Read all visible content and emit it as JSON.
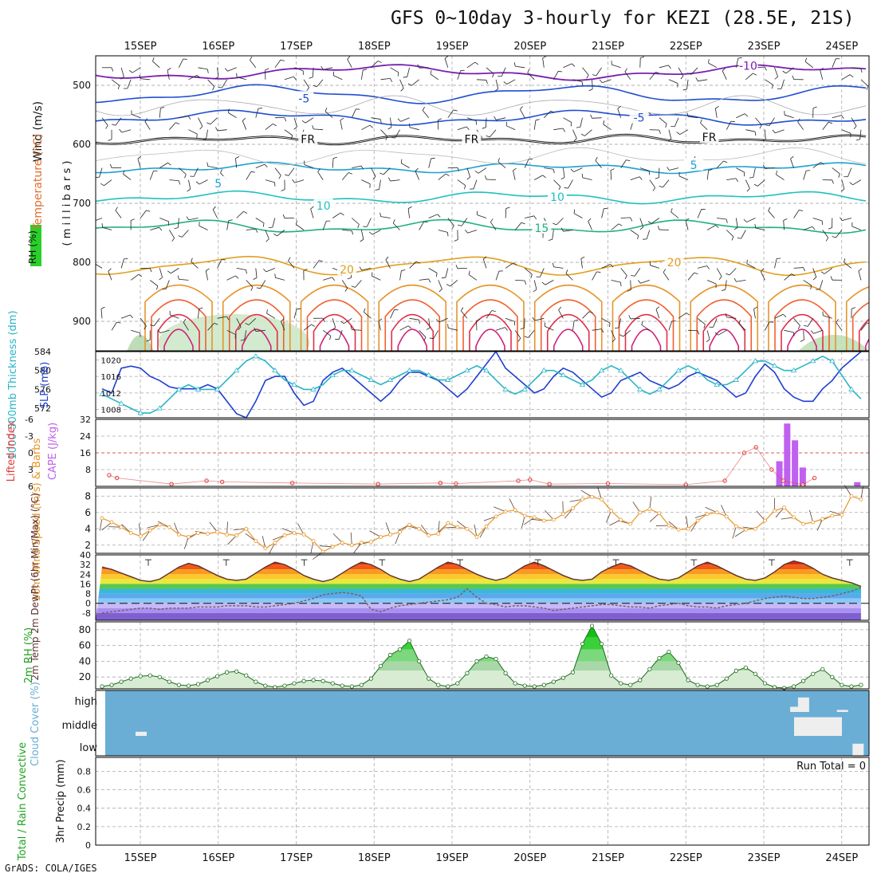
{
  "title": "GFS 0~10day 3-hourly for KEZI (28.5E, 21S)",
  "footer": "GrADS: COLA/IGES",
  "date_labels": [
    "15SEP",
    "16SEP",
    "17SEP",
    "18SEP",
    "19SEP",
    "20SEP",
    "21SEP",
    "22SEP",
    "23SEP",
    "24SEP"
  ],
  "colors": {
    "rh_green": "#1fd01f",
    "temp": "#e05050",
    "wind": "#7030a0",
    "cloud_blue": "#6aaed6",
    "slp": "#1f3fcf",
    "thick": "#2ab5c6",
    "li": "#e03a3a",
    "cape": "#c060f0",
    "wind10": "#e7962a",
    "rh2m": "#1fa21f"
  },
  "chart_data": [
    {
      "type": "contour",
      "panel": "upper-air",
      "ylabel_parts": [
        "RH (%)",
        "Temperature (°C)",
        "Wind (m/s)"
      ],
      "yaxis_label": "( m i l l i b a r s )",
      "yticks": [
        500,
        600,
        700,
        800,
        900
      ],
      "ylim": [
        450,
        950
      ],
      "contour_labels": [
        {
          "text": "-5",
          "day": 2.1,
          "p": 522,
          "color": "#1f4fd0"
        },
        {
          "text": "-5",
          "day": 6.4,
          "p": 555,
          "color": "#1f4fd0"
        },
        {
          "text": "-10",
          "day": 7.8,
          "p": 467,
          "color": "#7a1fb0"
        },
        {
          "text": "FR",
          "day": 2.15,
          "p": 591,
          "color": "#111"
        },
        {
          "text": "FR",
          "day": 4.25,
          "p": 591,
          "color": "#111"
        },
        {
          "text": "FR",
          "day": 7.3,
          "p": 588,
          "color": "#111"
        },
        {
          "text": "5",
          "day": 1.0,
          "p": 666,
          "color": "#1fa0d0"
        },
        {
          "text": "5",
          "day": 7.1,
          "p": 635,
          "color": "#1fa0d0"
        },
        {
          "text": "10",
          "day": 2.35,
          "p": 704,
          "color": "#20c0c0"
        },
        {
          "text": "10",
          "day": 5.35,
          "p": 689,
          "color": "#20c0c0"
        },
        {
          "text": "15",
          "day": 5.15,
          "p": 742,
          "color": "#20b080"
        },
        {
          "text": "20",
          "day": 2.65,
          "p": 812,
          "color": "#e0a020"
        },
        {
          "text": "20",
          "day": 6.85,
          "p": 800,
          "color": "#e0a020"
        }
      ],
      "levels": {
        "upper": [
          -10,
          -5
        ],
        "freezing": "FR",
        "mid": [
          5,
          10,
          15
        ],
        "low": [
          20
        ]
      }
    },
    {
      "type": "line",
      "panel": "slp-thickness",
      "ylabel_left": "1000-500mb Thickness (dm)",
      "ylabel_right": "SLP (mb)",
      "yticks_left": [
        572,
        576,
        580,
        584
      ],
      "yticks_right": [
        1008,
        1012,
        1016,
        1020
      ],
      "ylim_left": [
        570,
        584
      ],
      "ylim_right": [
        1006,
        1022
      ],
      "series": [
        {
          "name": "SLP (mb)",
          "axis": "right",
          "color": "#1f3fcf",
          "values": [
            1013,
            1012,
            1018,
            1018.5,
            1018,
            1016,
            1015,
            1013.5,
            1013,
            1013,
            1013,
            1014,
            1013,
            1010,
            1007,
            1006,
            1010,
            1015,
            1016,
            1016,
            1012,
            1009,
            1010,
            1015,
            1017,
            1018,
            1016,
            1014,
            1012,
            1010,
            1012,
            1015,
            1017,
            1017,
            1016,
            1015,
            1013,
            1011,
            1013,
            1016,
            1019,
            1022,
            1018,
            1016,
            1014,
            1012,
            1013,
            1016,
            1018,
            1017,
            1015,
            1013,
            1011,
            1012,
            1015,
            1016,
            1017,
            1015,
            1014,
            1013,
            1014,
            1016,
            1017,
            1016,
            1015,
            1013,
            1011,
            1012,
            1016,
            1019,
            1017,
            1013,
            1011,
            1010,
            1010,
            1013,
            1015,
            1018,
            1020,
            1022
          ]
        },
        {
          "name": "1000-500mb Thickness (dm)",
          "axis": "left",
          "color": "#2ab5c6",
          "values": [
            575,
            574,
            573,
            572,
            571,
            571,
            572,
            574,
            576,
            577,
            576,
            576,
            576,
            578,
            580,
            582,
            583,
            582,
            580,
            578,
            577,
            576,
            576,
            577,
            579,
            580,
            580,
            579,
            578,
            577,
            578,
            579,
            580,
            580,
            579,
            578,
            578,
            579,
            580,
            581,
            580,
            578,
            576,
            575,
            576,
            578,
            580,
            580,
            579,
            578,
            577,
            578,
            580,
            581,
            580,
            578,
            576,
            575,
            576,
            578,
            580,
            581,
            580,
            578,
            577,
            577,
            578,
            580,
            582,
            582,
            581,
            580,
            580,
            581,
            582,
            583,
            582,
            579,
            576,
            574
          ]
        }
      ]
    },
    {
      "type": "bar+line",
      "panel": "li-cape",
      "ylabel_left": "Lifted Index",
      "ylabel_right": "CAPE (J/kg)",
      "yticks_left": [
        -6,
        -3,
        0,
        3,
        6
      ],
      "yticks_right": [
        8,
        16,
        24,
        32
      ],
      "ylim_left": [
        6,
        -6
      ],
      "ylim_right": [
        0,
        32
      ],
      "cape_bars": [
        {
          "day": 8.2,
          "value": 12
        },
        {
          "day": 8.3,
          "value": 30
        },
        {
          "day": 8.4,
          "value": 22
        },
        {
          "day": 8.5,
          "value": 9
        },
        {
          "day": 9.2,
          "value": 2
        }
      ],
      "li_points": [
        {
          "day": 0.1,
          "value": 4
        },
        {
          "day": 0.2,
          "value": 4.5
        },
        {
          "day": 0.9,
          "value": 5.6
        },
        {
          "day": 1.35,
          "value": 5
        },
        {
          "day": 1.55,
          "value": 5.2
        },
        {
          "day": 2.45,
          "value": 5.4
        },
        {
          "day": 3.55,
          "value": 5.6
        },
        {
          "day": 4.35,
          "value": 5.4
        },
        {
          "day": 4.55,
          "value": 5.5
        },
        {
          "day": 5.35,
          "value": 5
        },
        {
          "day": 5.5,
          "value": 4.8
        },
        {
          "day": 5.75,
          "value": 5.6
        },
        {
          "day": 6.5,
          "value": 5.5
        },
        {
          "day": 7.5,
          "value": 5.7
        },
        {
          "day": 8.0,
          "value": 5
        },
        {
          "day": 8.25,
          "value": 0
        },
        {
          "day": 8.4,
          "value": -1
        },
        {
          "day": 8.6,
          "value": 3
        },
        {
          "day": 8.75,
          "value": 5
        },
        {
          "day": 9.0,
          "value": 5.7
        },
        {
          "day": 9.15,
          "value": 4.5
        }
      ]
    },
    {
      "type": "line",
      "panel": "wind10m",
      "ylabel": "10m Wind Speed (m/s) & Barbs",
      "yticks": [
        2,
        4,
        6,
        8
      ],
      "ylim": [
        1,
        9
      ],
      "series": [
        {
          "name": "10m Wind Speed",
          "color": "#e7962a",
          "values": [
            5.3,
            4.8,
            4.2,
            3.5,
            3.1,
            3.8,
            4.5,
            4.2,
            3.3,
            3.0,
            3.5,
            3.4,
            3.6,
            3.3,
            3.2,
            4.0,
            2.5,
            1.6,
            2.3,
            3.2,
            3.5,
            3.3,
            2.5,
            1.2,
            1.8,
            2.3,
            2.0,
            2.3,
            2.4,
            3.0,
            3.3,
            3.6,
            4.5,
            4.0,
            3.2,
            3.4,
            4.7,
            4.2,
            4.0,
            3.0,
            4.3,
            5.5,
            6.1,
            6.3,
            5.6,
            5.4,
            5.0,
            5.1,
            5.8,
            6.5,
            7.6,
            7.9,
            7.6,
            6.2,
            5.1,
            4.6,
            6.0,
            6.4,
            5.9,
            4.4,
            3.9,
            4.0,
            5.0,
            5.8,
            6.0,
            5.5,
            4.3,
            3.9,
            4.0,
            5.0,
            6.2,
            6.6,
            5.4,
            4.6,
            4.8,
            5.2,
            5.6,
            5.7,
            8.0,
            7.6
          ]
        }
      ]
    },
    {
      "type": "area",
      "panel": "temp2m",
      "ylabel": "2m Temp 2m DewPt (6hr Min/Max) (°C)",
      "yticks": [
        -8,
        0,
        8,
        16,
        24,
        32,
        40
      ],
      "ylim": [
        -14,
        40
      ],
      "series": [
        {
          "name": "2m Temp",
          "color": "#5a3030",
          "values": [
            30,
            28,
            25,
            22,
            19,
            18,
            20,
            25,
            30,
            33,
            31,
            27,
            23,
            20,
            19,
            20,
            25,
            30,
            34,
            32,
            28,
            23,
            20,
            18,
            20,
            25,
            30,
            34,
            32,
            28,
            23,
            20,
            18,
            20,
            25,
            30,
            34,
            32,
            28,
            24,
            21,
            19,
            21,
            26,
            31,
            34,
            31,
            27,
            23,
            20,
            19,
            20,
            26,
            30,
            33,
            31,
            27,
            23,
            20,
            19,
            21,
            26,
            31,
            34,
            31,
            27,
            23,
            20,
            19,
            21,
            26,
            32,
            35,
            33,
            29,
            24,
            21,
            19,
            17,
            14
          ]
        },
        {
          "name": "2m DewPt",
          "color": "#7a5a5a",
          "values": [
            -8,
            -7,
            -6,
            -5,
            -4,
            -4,
            -5,
            -4,
            -4,
            -4,
            -3,
            -3,
            -3,
            -2,
            -2,
            -2,
            -3,
            -3,
            -2,
            -1,
            0,
            2,
            4,
            7,
            8,
            9,
            8,
            6,
            -5,
            -7,
            -4,
            -2,
            -1,
            0,
            1,
            2,
            3,
            5,
            12,
            5,
            0,
            -1,
            -3,
            -2,
            -2,
            -3,
            -4,
            -6,
            -5,
            -4,
            -3,
            -2,
            -1,
            -1,
            -2,
            -3,
            -3,
            -4,
            -2,
            -1,
            0,
            -2,
            -3,
            -3,
            -4,
            -2,
            -1,
            0,
            2,
            4,
            5,
            6,
            5,
            4,
            4,
            5,
            6,
            8,
            10,
            13
          ]
        }
      ]
    },
    {
      "type": "area",
      "panel": "rh2m",
      "ylabel": "2m RH (%)",
      "yticks": [
        20,
        40,
        60,
        80
      ],
      "ylim": [
        5,
        90
      ],
      "series": [
        {
          "name": "2m RH",
          "color": "#1fa21f",
          "values": [
            8,
            10,
            14,
            18,
            21,
            22,
            20,
            14,
            10,
            9,
            11,
            16,
            21,
            26,
            27,
            22,
            14,
            9,
            7,
            9,
            12,
            15,
            16,
            15,
            12,
            9,
            8,
            10,
            18,
            34,
            48,
            55,
            66,
            40,
            18,
            10,
            8,
            12,
            25,
            40,
            46,
            43,
            25,
            12,
            9,
            8,
            10,
            14,
            19,
            26,
            62,
            85,
            62,
            22,
            12,
            10,
            16,
            30,
            44,
            52,
            38,
            16,
            10,
            8,
            10,
            18,
            28,
            32,
            24,
            12,
            7,
            6,
            8,
            15,
            24,
            30,
            20,
            10,
            8,
            10
          ]
        }
      ]
    },
    {
      "type": "heatmap",
      "panel": "cloud",
      "ylabel": "Cloud Cover (%)",
      "ylevels": [
        "high",
        "middle",
        "low"
      ],
      "cells": [
        {
          "day": 0.0,
          "level": "middle",
          "value": 20
        },
        {
          "day": 8.4,
          "level": "high",
          "value": 25
        },
        {
          "day": 8.5,
          "level": "high",
          "value": 70
        },
        {
          "day": 8.45,
          "level": "middle",
          "value": 90
        },
        {
          "day": 9.0,
          "level": "high",
          "value": 10
        },
        {
          "day": 9.2,
          "level": "low",
          "value": 70
        }
      ]
    },
    {
      "type": "bar",
      "panel": "precip",
      "ylabel_left": "Total / Rain Convective",
      "ylabel": "3hr Precip (mm)",
      "yticks": [
        0,
        0.2,
        0.4,
        0.6,
        0.8
      ],
      "ylim": [
        0,
        0.95
      ],
      "run_total_label": "Run Total = 0",
      "values": []
    }
  ]
}
